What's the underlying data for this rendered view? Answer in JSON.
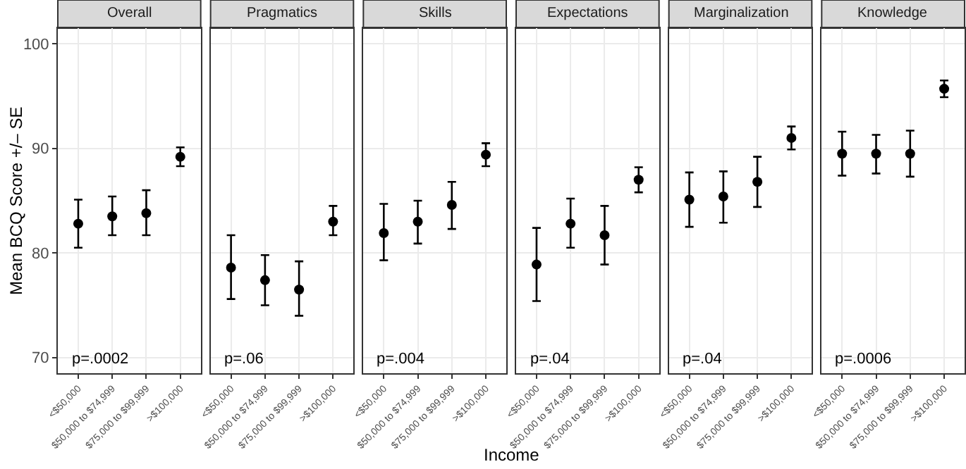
{
  "chart_data": [
    {
      "type": "scatter",
      "title": "Overall",
      "ylabel": "Mean BCQ Score +/– SE",
      "categories": [
        "<$50,000",
        "$50,000 to $74,999",
        "$75,000 to $99,999",
        ">$100,000"
      ],
      "values": [
        82.8,
        83.5,
        83.8,
        89.2
      ],
      "errors": [
        [
          80.5,
          85.1
        ],
        [
          81.7,
          85.4
        ],
        [
          81.7,
          86.0
        ],
        [
          88.3,
          90.1
        ]
      ],
      "ylim": [
        68.5,
        101.5
      ],
      "yticks": [
        70,
        80,
        90,
        100
      ],
      "annotations": [
        "p=.0002"
      ],
      "marker": "circle",
      "color": "#000000",
      "grid": true
    },
    {
      "type": "scatter",
      "title": "Pragmatics",
      "categories": [
        "<$50,000",
        "$50,000 to $74,999",
        "$75,000 to $99,999",
        ">$100,000"
      ],
      "values": [
        78.6,
        77.4,
        76.5,
        83.0
      ],
      "errors": [
        [
          75.6,
          81.7
        ],
        [
          75.0,
          79.8
        ],
        [
          74.0,
          79.2
        ],
        [
          81.7,
          84.5
        ]
      ],
      "ylim": [
        68.5,
        101.5
      ],
      "yticks": [
        70,
        80,
        90,
        100
      ],
      "tick_labels": "x",
      "annotations": [
        "p=.06"
      ],
      "marker": "circle",
      "color": "#000000",
      "grid": true
    },
    {
      "type": "scatter",
      "title": "Skills",
      "xlabel": "Income",
      "categories": [
        "<$50,000",
        "$50,000 to $74,999",
        "$75,000 to $99,999",
        ">$100,000"
      ],
      "values": [
        81.9,
        83.0,
        84.6,
        89.4
      ],
      "errors": [
        [
          79.3,
          84.7
        ],
        [
          80.9,
          85.0
        ],
        [
          82.3,
          86.8
        ],
        [
          88.3,
          90.5
        ]
      ],
      "ylim": [
        68.5,
        101.5
      ],
      "yticks": [
        70,
        80,
        90,
        100
      ],
      "tick_labels": "x",
      "annotations": [
        "p=.004"
      ],
      "marker": "circle",
      "color": "#000000",
      "grid": true
    },
    {
      "type": "scatter",
      "title": "Expectations",
      "categories": [
        "<$50,000",
        "$50,000 to $74,999",
        "$75,000 to $99,999",
        ">$100,000"
      ],
      "values": [
        78.9,
        82.8,
        81.7,
        87.0
      ],
      "errors": [
        [
          75.4,
          82.4
        ],
        [
          80.5,
          85.2
        ],
        [
          78.9,
          84.5
        ],
        [
          85.8,
          88.2
        ]
      ],
      "ylim": [
        68.5,
        101.5
      ],
      "yticks": [
        70,
        80,
        90,
        100
      ],
      "tick_labels": "x",
      "annotations": [
        "p=.04"
      ],
      "marker": "circle",
      "color": "#000000",
      "grid": true
    },
    {
      "type": "scatter",
      "title": "Marginalization",
      "categories": [
        "<$50,000",
        "$50,000 to $74,999",
        "$75,000 to $99,999",
        ">$100,000"
      ],
      "values": [
        85.1,
        85.4,
        86.8,
        91.0
      ],
      "errors": [
        [
          82.5,
          87.7
        ],
        [
          82.9,
          87.8
        ],
        [
          84.4,
          89.2
        ],
        [
          89.9,
          92.1
        ]
      ],
      "ylim": [
        68.5,
        101.5
      ],
      "yticks": [
        70,
        80,
        90,
        100
      ],
      "tick_labels": "x",
      "annotations": [
        "p=.04"
      ],
      "marker": "circle",
      "color": "#000000",
      "grid": true
    },
    {
      "type": "scatter",
      "title": "Knowledge",
      "categories": [
        "<$50,000",
        "$50,000 to $74,999",
        "$75,000 to $99,999",
        ">$100,000"
      ],
      "values": [
        89.5,
        89.5,
        89.5,
        95.7
      ],
      "errors": [
        [
          87.4,
          91.6
        ],
        [
          87.6,
          91.3
        ],
        [
          87.3,
          91.7
        ],
        [
          94.9,
          96.5
        ]
      ],
      "ylim": [
        68.5,
        101.5
      ],
      "yticks": [
        70,
        80,
        90,
        100
      ],
      "tick_labels": "x",
      "annotations": [
        "p=.0006"
      ],
      "marker": "circle",
      "color": "#000000",
      "grid": true
    }
  ]
}
